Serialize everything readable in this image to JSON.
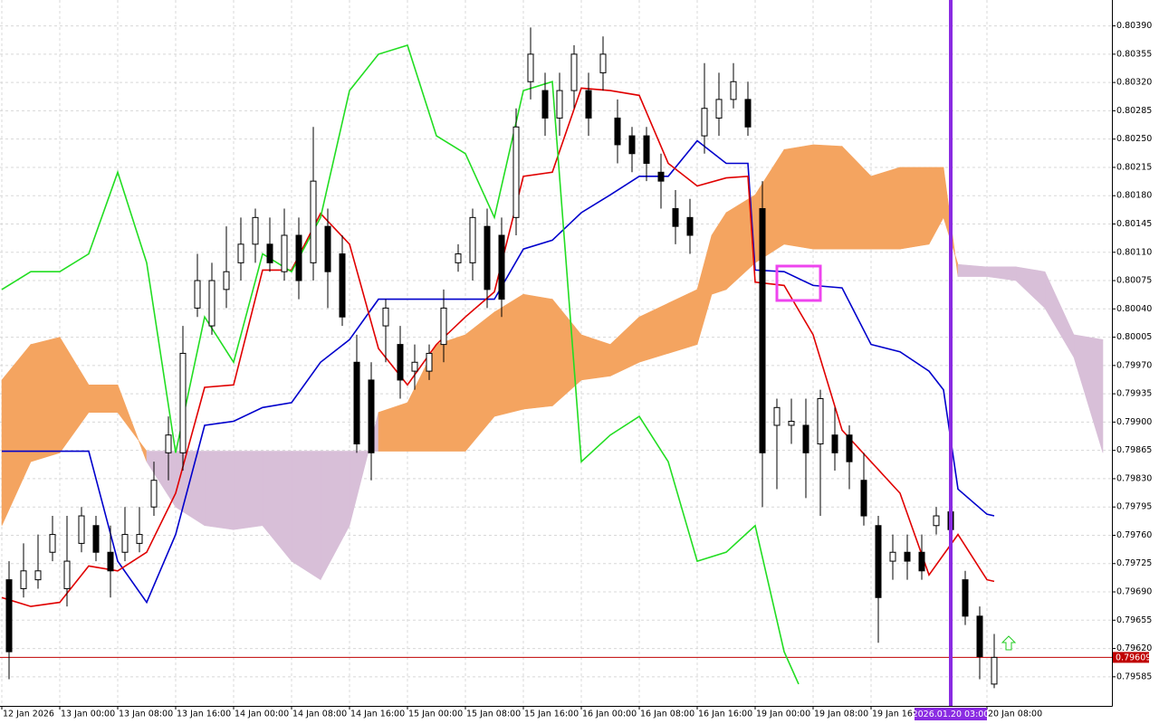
{
  "chart_data": {
    "type": "candlestick",
    "xlim": [
      -0.25,
      153.25
    ],
    "ylim": [
      0.79549,
      0.80422
    ],
    "grid": true,
    "xticks": [
      {
        "value": 0,
        "label": "12 Jan 2026"
      },
      {
        "value": 8,
        "label": "13 Jan 00:00"
      },
      {
        "value": 16,
        "label": "13 Jan 08:00"
      },
      {
        "value": 24,
        "label": "13 Jan 16:00"
      },
      {
        "value": 32,
        "label": "14 Jan 00:00"
      },
      {
        "value": 40,
        "label": "14 Jan 08:00"
      },
      {
        "value": 48,
        "label": "14 Jan 16:00"
      },
      {
        "value": 56,
        "label": "15 Jan 00:00"
      },
      {
        "value": 64,
        "label": "15 Jan 08:00"
      },
      {
        "value": 72,
        "label": "15 Jan 16:00"
      },
      {
        "value": 80,
        "label": "16 Jan 00:00"
      },
      {
        "value": 88,
        "label": "16 Jan 08:00"
      },
      {
        "value": 96,
        "label": "16 Jan 16:00"
      },
      {
        "value": 104,
        "label": "19 Jan 00:00"
      },
      {
        "value": 112,
        "label": "19 Jan 08:00"
      },
      {
        "value": 120,
        "label": "19 Jan 16:00"
      },
      {
        "value": 136,
        "label": "20 Jan 08:00"
      }
    ],
    "yticks": [
      {
        "value": 0.8039,
        "label": "0.80390"
      },
      0.80355,
      {
        "value": 0.8032,
        "label": "0.80320"
      },
      0.80285,
      {
        "value": 0.8025,
        "label": "0.80250"
      },
      0.80215,
      {
        "value": 0.8018,
        "label": "0.80180"
      },
      0.80145,
      {
        "value": 0.8011,
        "label": "0.80110"
      },
      0.80075,
      {
        "value": 0.8004,
        "label": "0.80040"
      },
      0.80005,
      {
        "value": 0.7997,
        "label": "0.79970"
      },
      0.79935,
      {
        "value": 0.799,
        "label": "0.79900"
      },
      0.79865,
      {
        "value": 0.7983,
        "label": "0.79830"
      },
      0.79795,
      {
        "value": 0.7976,
        "label": "0.79760"
      },
      0.79725,
      {
        "value": 0.7969,
        "label": "0.79690"
      },
      0.79655,
      {
        "value": 0.7962,
        "label": "0.79620"
      },
      0.79585
    ],
    "candles": {
      "up_color": "#ffffff",
      "down_color": "#000000",
      "x": [
        1,
        3,
        5,
        7,
        9,
        11,
        13,
        15,
        17,
        19,
        21,
        23,
        25,
        27,
        29,
        31,
        33,
        35,
        37,
        39,
        41,
        43,
        45,
        47,
        49,
        51,
        53,
        55,
        57,
        59,
        61,
        63,
        65,
        67,
        69,
        71,
        73,
        75,
        77,
        79,
        81,
        83,
        85,
        87,
        89,
        91,
        93,
        95,
        97,
        99,
        101,
        103,
        105,
        107,
        109,
        111,
        113,
        115,
        117,
        119,
        121,
        123,
        125,
        127,
        129,
        131,
        133,
        135,
        137
      ],
      "open": [
        0.79705,
        0.79694,
        0.79705,
        0.79739,
        0.79694,
        0.7975,
        0.79772,
        0.79739,
        0.79739,
        0.7975,
        0.79795,
        0.79862,
        0.79862,
        0.80041,
        0.80019,
        0.80064,
        0.80097,
        0.8012,
        0.8012,
        0.80086,
        0.80131,
        0.80097,
        0.80142,
        0.80108,
        0.79974,
        0.79952,
        0.80019,
        0.79996,
        0.79963,
        0.79963,
        0.79996,
        0.80097,
        0.80097,
        0.80142,
        0.80131,
        0.80153,
        0.80321,
        0.8031,
        0.80276,
        0.8031,
        0.8031,
        0.80332,
        0.80276,
        0.80254,
        0.80254,
        0.80209,
        0.80164,
        0.80153,
        0.80254,
        0.80276,
        0.80299,
        0.80299,
        0.80164,
        0.79896,
        0.79896,
        0.79896,
        0.79873,
        0.79884,
        0.79884,
        0.79828,
        0.79772,
        0.79728,
        0.79739,
        0.79739,
        0.79772,
        0.79789,
        0.79705,
        0.7966,
        0.79576
      ],
      "high": [
        0.79728,
        0.7975,
        0.79761,
        0.79784,
        0.79784,
        0.79795,
        0.79784,
        0.79772,
        0.79795,
        0.79795,
        0.79851,
        0.79907,
        0.80019,
        0.80108,
        0.80097,
        0.80142,
        0.80153,
        0.80164,
        0.80153,
        0.80164,
        0.80153,
        0.80265,
        0.80164,
        0.80131,
        0.80008,
        0.79974,
        0.80052,
        0.80019,
        0.79996,
        0.79996,
        0.80064,
        0.8012,
        0.80164,
        0.80164,
        0.80153,
        0.80288,
        0.80388,
        0.80332,
        0.80332,
        0.80366,
        0.80332,
        0.80377,
        0.80299,
        0.80265,
        0.80265,
        0.80232,
        0.80187,
        0.80176,
        0.80344,
        0.80332,
        0.80344,
        0.80321,
        0.80198,
        0.79929,
        0.79929,
        0.79929,
        0.7994,
        0.79918,
        0.79896,
        0.79862,
        0.79784,
        0.79761,
        0.79761,
        0.79761,
        0.79795,
        0.79795,
        0.79716,
        0.79672,
        0.79638
      ],
      "low": [
        0.79582,
        0.79683,
        0.79694,
        0.79728,
        0.79672,
        0.79739,
        0.79728,
        0.79683,
        0.79728,
        0.79739,
        0.79784,
        0.79828,
        0.7984,
        0.8003,
        0.80008,
        0.80041,
        0.80075,
        0.80097,
        0.80086,
        0.80075,
        0.80052,
        0.80075,
        0.80041,
        0.80019,
        0.79862,
        0.79828,
        0.79974,
        0.79929,
        0.7994,
        0.79952,
        0.79974,
        0.80086,
        0.80075,
        0.80041,
        0.8003,
        0.80131,
        0.80299,
        0.80254,
        0.80254,
        0.80288,
        0.80254,
        0.8031,
        0.8022,
        0.80209,
        0.80198,
        0.80164,
        0.8012,
        0.80108,
        0.80232,
        0.80254,
        0.80288,
        0.80254,
        0.79795,
        0.79817,
        0.79873,
        0.79806,
        0.79784,
        0.7984,
        0.79817,
        0.79772,
        0.79627,
        0.79705,
        0.79705,
        0.79705,
        0.79761,
        0.7975,
        0.79649,
        0.79582,
        0.79571
      ],
      "close": [
        0.79616,
        0.79716,
        0.79716,
        0.79761,
        0.79728,
        0.79784,
        0.79739,
        0.79716,
        0.79761,
        0.79761,
        0.79828,
        0.79884,
        0.79985,
        0.80075,
        0.80075,
        0.80086,
        0.8012,
        0.80153,
        0.80097,
        0.80131,
        0.80075,
        0.80198,
        0.80086,
        0.8003,
        0.79873,
        0.79862,
        0.80041,
        0.79952,
        0.79974,
        0.79985,
        0.80041,
        0.80108,
        0.80153,
        0.80064,
        0.80052,
        0.80265,
        0.80355,
        0.80276,
        0.8031,
        0.80355,
        0.80276,
        0.80355,
        0.80243,
        0.80232,
        0.8022,
        0.80198,
        0.80142,
        0.80131,
        0.80288,
        0.80299,
        0.80321,
        0.80265,
        0.79862,
        0.79918,
        0.79901,
        0.79862,
        0.79929,
        0.79862,
        0.79851,
        0.79784,
        0.79683,
        0.79739,
        0.79728,
        0.79716,
        0.79784,
        0.79767,
        0.7966,
        0.7961,
        0.79609
      ]
    },
    "cloud": {
      "color_up": "#f4a460",
      "color_down": "#d8bfd8",
      "x": [
        0,
        4,
        8,
        12,
        16,
        20,
        24,
        28,
        32,
        36,
        40,
        44,
        48,
        52,
        56,
        60,
        64,
        68,
        72,
        76,
        80,
        84,
        88,
        92,
        96,
        98,
        100,
        104,
        108,
        112,
        116,
        120,
        124,
        128,
        130,
        132,
        136,
        140,
        144,
        148,
        152
      ],
      "span_a": [
        0.79952,
        0.79996,
        0.80005,
        0.79946,
        0.79946,
        0.79851,
        0.79795,
        0.79772,
        0.79767,
        0.79772,
        0.79728,
        0.79705,
        0.79772,
        0.79912,
        0.79924,
        0.79996,
        0.80008,
        0.80036,
        0.80058,
        0.80052,
        0.80008,
        0.79996,
        0.8003,
        0.80047,
        0.80064,
        0.80131,
        0.80159,
        0.80181,
        0.80237,
        0.80243,
        0.80241,
        0.80204,
        0.80215,
        0.80215,
        0.80215,
        0.8008,
        0.8008,
        0.80075,
        0.80041,
        0.7998,
        0.79862
      ],
      "span_b": [
        0.79772,
        0.79851,
        0.79862,
        0.79912,
        0.79912,
        0.79864,
        0.79864,
        0.79864,
        0.79864,
        0.79864,
        0.79864,
        0.79864,
        0.79864,
        0.79864,
        0.79864,
        0.79864,
        0.79864,
        0.79907,
        0.79916,
        0.7992,
        0.79952,
        0.79957,
        0.79974,
        0.79985,
        0.79996,
        0.80058,
        0.80064,
        0.80097,
        0.8012,
        0.80114,
        0.80114,
        0.80114,
        0.80114,
        0.8012,
        0.80153,
        0.80095,
        0.80092,
        0.80092,
        0.80086,
        0.80008,
        0.80002
      ]
    },
    "lines": [
      {
        "color": "#0000cc",
        "x": [
          0,
          12,
          16,
          20,
          24,
          28,
          32,
          36,
          40,
          44,
          48,
          52,
          68,
          72,
          76,
          80,
          84,
          88,
          92,
          96,
          100,
          103,
          104,
          108,
          112,
          116,
          120,
          124,
          128,
          130,
          132,
          136,
          137
        ],
        "values": [
          0.79864,
          0.79864,
          0.79728,
          0.79677,
          0.79761,
          0.79896,
          0.79901,
          0.79918,
          0.79924,
          0.79974,
          0.80002,
          0.80052,
          0.80052,
          0.80114,
          0.80125,
          0.80159,
          0.80181,
          0.80204,
          0.80204,
          0.80248,
          0.8022,
          0.8022,
          0.80088,
          0.80086,
          0.80069,
          0.80066,
          0.79996,
          0.79987,
          0.79963,
          0.7994,
          0.79817,
          0.79786,
          0.79784
        ]
      },
      {
        "color": "#e00000",
        "x": [
          0,
          4,
          8,
          12,
          16,
          20,
          24,
          28,
          32,
          36,
          40,
          44,
          48,
          52,
          56,
          60,
          64,
          68,
          72,
          76,
          80,
          84,
          88,
          92,
          96,
          100,
          103,
          104,
          108,
          112,
          116,
          120,
          124,
          128,
          132,
          136,
          137
        ],
        "values": [
          0.79683,
          0.79672,
          0.79677,
          0.79722,
          0.79716,
          0.79739,
          0.79812,
          0.79943,
          0.79946,
          0.80088,
          0.80088,
          0.80158,
          0.8012,
          0.79991,
          0.79946,
          0.79996,
          0.8003,
          0.80061,
          0.80204,
          0.80209,
          0.80313,
          0.8031,
          0.80304,
          0.8022,
          0.80192,
          0.80202,
          0.80204,
          0.80073,
          0.80069,
          0.80008,
          0.7989,
          0.79851,
          0.79812,
          0.79711,
          0.79761,
          0.79705,
          0.79703
        ]
      },
      {
        "color": "#22dd22",
        "x": [
          0,
          4,
          8,
          12,
          16,
          20,
          24,
          28,
          32,
          36,
          40,
          44,
          48,
          52,
          56,
          60,
          64,
          68,
          72,
          76,
          80,
          84,
          88,
          92,
          96,
          100,
          104,
          108,
          110
        ],
        "values": [
          0.80064,
          0.80086,
          0.80086,
          0.80108,
          0.80209,
          0.80097,
          0.79862,
          0.8003,
          0.79974,
          0.80108,
          0.80086,
          0.80153,
          0.8031,
          0.80355,
          0.80366,
          0.80254,
          0.80232,
          0.80153,
          0.8031,
          0.80321,
          0.79851,
          0.79884,
          0.79907,
          0.79851,
          0.79728,
          0.79739,
          0.79772,
          0.79616,
          0.79576
        ]
      }
    ],
    "current_price": {
      "value": 0.79609,
      "color": "#c00000"
    },
    "marker": {
      "x": 131,
      "label": "2026.01.20 03:00",
      "color": "#8a2be2"
    }
  }
}
